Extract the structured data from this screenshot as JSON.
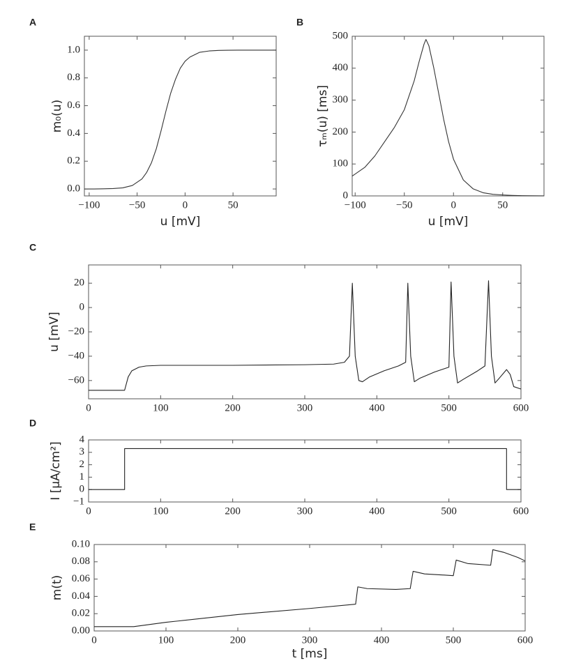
{
  "chart_data": [
    {
      "type": "line",
      "panel": "A",
      "xlabel": "u [mV]",
      "ylabel": "m₀(u)",
      "color": "#333333",
      "x": [
        -105,
        -95,
        -85,
        -75,
        -65,
        -55,
        -45,
        -40,
        -35,
        -30,
        -25,
        -20,
        -15,
        -10,
        -5,
        0,
        5,
        15,
        25,
        35,
        45,
        55,
        65,
        75,
        85,
        95
      ],
      "values": [
        0,
        0,
        0.001,
        0.003,
        0.008,
        0.025,
        0.072,
        0.12,
        0.19,
        0.29,
        0.42,
        0.56,
        0.69,
        0.79,
        0.87,
        0.92,
        0.95,
        0.984,
        0.994,
        0.998,
        0.999,
        1,
        1,
        1,
        1,
        1
      ],
      "xlim": [
        -105,
        95
      ],
      "ylim": [
        -0.05,
        1.1
      ],
      "xticks": [
        {
          "value": -100,
          "label": "−100"
        },
        {
          "value": -50,
          "label": "−50"
        },
        0,
        50
      ],
      "yticks": [
        {
          "value": 0,
          "label": "0.0"
        },
        0.2,
        0.4,
        0.6,
        0.8,
        {
          "value": 1,
          "label": "1.0"
        }
      ]
    },
    {
      "type": "line",
      "panel": "B",
      "xlabel": "u [mV]",
      "ylabel": "τₘ(u) [ms]",
      "color": "#333333",
      "x": [
        -103,
        -90,
        -80,
        -70,
        -60,
        -50,
        -40,
        -35,
        -30,
        -28,
        -25,
        -20,
        -15,
        -10,
        -5,
        0,
        10,
        20,
        30,
        40,
        50,
        60,
        70,
        80,
        92
      ],
      "values": [
        62,
        90,
        125,
        170,
        215,
        270,
        360,
        420,
        475,
        490,
        470,
        400,
        320,
        240,
        170,
        115,
        50,
        22,
        10,
        5,
        3,
        1.5,
        0.7,
        0.3,
        0.1
      ],
      "xlim": [
        -103,
        92
      ],
      "ylim": [
        0,
        500
      ],
      "xticks": [
        {
          "value": -100,
          "label": "−100"
        },
        {
          "value": -50,
          "label": "−50"
        },
        0,
        50
      ],
      "yticks": [
        0,
        100,
        200,
        300,
        400,
        500
      ]
    },
    {
      "type": "line",
      "panel": "C",
      "ylabel": "u [mV]",
      "color": "#222222",
      "x": [
        0,
        49,
        50,
        55,
        60,
        70,
        80,
        100,
        200,
        300,
        340,
        355,
        362,
        366,
        370,
        375,
        380,
        390,
        410,
        430,
        440,
        443,
        447,
        452,
        460,
        480,
        500,
        503,
        507,
        512,
        520,
        540,
        550,
        555,
        559,
        564,
        570,
        580,
        585,
        590,
        600
      ],
      "values": [
        -68,
        -68,
        -68,
        -57,
        -52,
        -49,
        -48,
        -47.5,
        -47.5,
        -47,
        -46.5,
        -45,
        -40,
        20,
        -40,
        -60,
        -61,
        -57,
        -52,
        -48,
        -45,
        20,
        -40,
        -61,
        -58,
        -53,
        -49,
        21,
        -40,
        -62,
        -59,
        -52,
        -48,
        22,
        -40,
        -62,
        -58,
        -51,
        -55,
        -65,
        -67
      ],
      "xlim": [
        0,
        600
      ],
      "ylim": [
        -75,
        35
      ],
      "xticks": [
        0,
        100,
        200,
        300,
        400,
        500,
        600
      ],
      "yticks": [
        20,
        0,
        {
          "value": -20,
          "label": "−20"
        },
        {
          "value": -40,
          "label": "−40"
        },
        {
          "value": -60,
          "label": "−60"
        }
      ]
    },
    {
      "type": "line",
      "panel": "D",
      "ylabel": "I [μA/cm²]",
      "color": "#222222",
      "x": [
        0,
        50,
        50,
        580,
        580,
        600
      ],
      "values": [
        0,
        0,
        3.3,
        3.3,
        0,
        0
      ],
      "xlim": [
        0,
        600
      ],
      "ylim": [
        -1,
        4
      ],
      "xticks": [
        0,
        100,
        200,
        300,
        400,
        500,
        600
      ],
      "yticks": [
        {
          "value": -1,
          "label": "−1"
        },
        0,
        1,
        2,
        3,
        4
      ]
    },
    {
      "type": "line",
      "panel": "E",
      "xlabel": "t [ms]",
      "ylabel": "m(t)",
      "color": "#222222",
      "x": [
        0,
        55,
        100,
        200,
        300,
        364,
        367,
        380,
        420,
        440,
        444,
        460,
        500,
        504,
        520,
        552,
        555,
        570,
        590,
        600
      ],
      "values": [
        0.005,
        0.005,
        0.01,
        0.019,
        0.026,
        0.031,
        0.051,
        0.049,
        0.048,
        0.049,
        0.069,
        0.066,
        0.064,
        0.082,
        0.078,
        0.076,
        0.094,
        0.091,
        0.085,
        0.081
      ],
      "xlim": [
        0,
        600
      ],
      "ylim": [
        0,
        0.1
      ],
      "xticks": [
        0,
        100,
        200,
        300,
        400,
        500,
        600
      ],
      "yticks": [
        {
          "value": 0,
          "label": "0.00"
        },
        0.02,
        0.04,
        0.06,
        0.08,
        {
          "value": 0.1,
          "label": "0.10"
        }
      ]
    }
  ]
}
